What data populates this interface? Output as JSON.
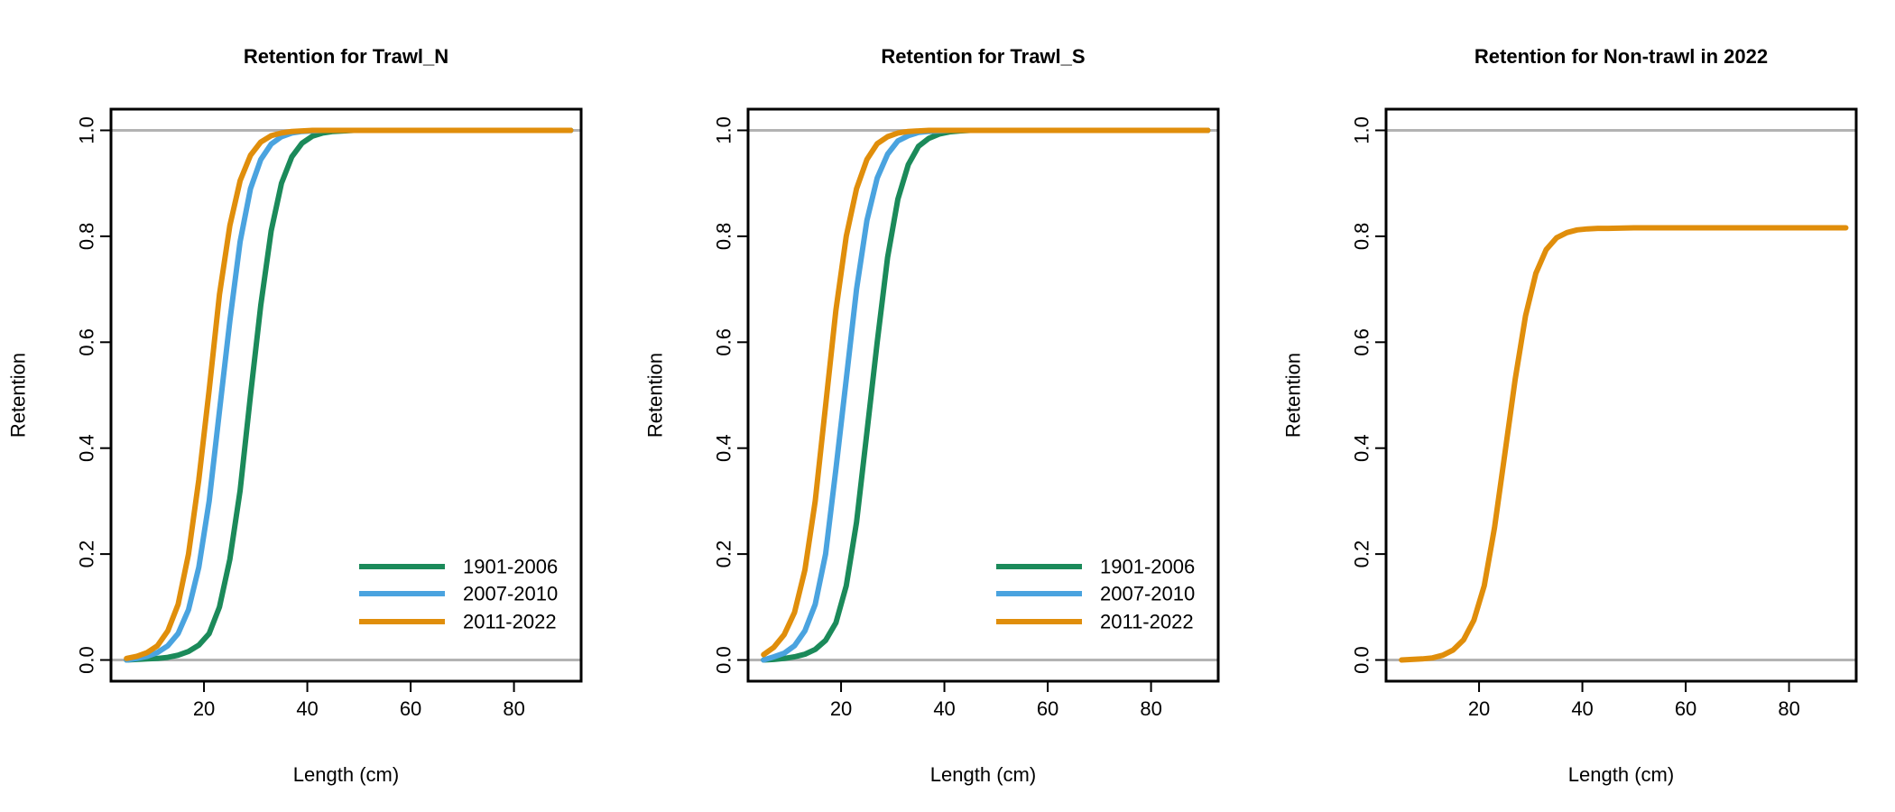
{
  "chart_data": [
    {
      "type": "line",
      "title": "Retention for Trawl_N",
      "xlabel": "Length (cm)",
      "ylabel": "Retention",
      "xlim": [
        2,
        93
      ],
      "ylim": [
        -0.04,
        1.04
      ],
      "xticks": [
        20,
        40,
        60,
        80
      ],
      "yticks": [
        0.0,
        0.2,
        0.4,
        0.6,
        0.8,
        1.0
      ],
      "ytick_labels": [
        "0.0",
        "0.2",
        "0.4",
        "0.6",
        "0.8",
        "1.0"
      ],
      "reference_lines": [
        0,
        1
      ],
      "reference_color": "#b3b3b3",
      "legend": "bottom-right",
      "series": [
        {
          "name": "1901-2006",
          "color": "#1b8a5a",
          "x": [
            5,
            7,
            9,
            11,
            13,
            15,
            17,
            19,
            21,
            23,
            25,
            27,
            29,
            31,
            33,
            35,
            37,
            39,
            41,
            43,
            45,
            47,
            49,
            51,
            55,
            60,
            70,
            80,
            91
          ],
          "y": [
            0.0,
            0.001,
            0.002,
            0.003,
            0.005,
            0.009,
            0.016,
            0.028,
            0.05,
            0.1,
            0.19,
            0.32,
            0.5,
            0.67,
            0.81,
            0.9,
            0.95,
            0.976,
            0.989,
            0.995,
            0.998,
            0.999,
            1.0,
            1.0,
            1.0,
            1.0,
            1.0,
            1.0,
            1.0
          ]
        },
        {
          "name": "2007-2010",
          "color": "#4aa3df",
          "x": [
            5,
            7,
            9,
            11,
            13,
            15,
            17,
            19,
            21,
            23,
            25,
            27,
            29,
            31,
            33,
            35,
            37,
            39,
            41,
            43,
            45,
            47,
            50,
            55,
            60,
            70,
            80,
            91
          ],
          "y": [
            0.0,
            0.003,
            0.007,
            0.014,
            0.027,
            0.05,
            0.095,
            0.175,
            0.3,
            0.47,
            0.64,
            0.79,
            0.89,
            0.945,
            0.974,
            0.988,
            0.995,
            0.998,
            0.999,
            1.0,
            1.0,
            1.0,
            1.0,
            1.0,
            1.0,
            1.0,
            1.0,
            1.0
          ]
        },
        {
          "name": "2011-2022",
          "color": "#e08e0b",
          "x": [
            5,
            7,
            9,
            11,
            13,
            15,
            17,
            19,
            21,
            23,
            25,
            27,
            29,
            31,
            33,
            35,
            37,
            39,
            41,
            43,
            45,
            50,
            55,
            60,
            70,
            80,
            91
          ],
          "y": [
            0.003,
            0.007,
            0.014,
            0.027,
            0.055,
            0.105,
            0.2,
            0.34,
            0.51,
            0.69,
            0.82,
            0.905,
            0.953,
            0.978,
            0.99,
            0.995,
            0.998,
            0.999,
            1.0,
            1.0,
            1.0,
            1.0,
            1.0,
            1.0,
            1.0,
            1.0,
            1.0
          ]
        }
      ]
    },
    {
      "type": "line",
      "title": "Retention for Trawl_S",
      "xlabel": "Length (cm)",
      "ylabel": "Retention",
      "xlim": [
        2,
        93
      ],
      "ylim": [
        -0.04,
        1.04
      ],
      "xticks": [
        20,
        40,
        60,
        80
      ],
      "yticks": [
        0.0,
        0.2,
        0.4,
        0.6,
        0.8,
        1.0
      ],
      "ytick_labels": [
        "0.0",
        "0.2",
        "0.4",
        "0.6",
        "0.8",
        "1.0"
      ],
      "reference_lines": [
        0,
        1
      ],
      "reference_color": "#b3b3b3",
      "legend": "bottom-right",
      "series": [
        {
          "name": "1901-2006",
          "color": "#1b8a5a",
          "x": [
            5,
            7,
            9,
            11,
            13,
            15,
            17,
            19,
            21,
            23,
            25,
            27,
            29,
            31,
            33,
            35,
            37,
            39,
            41,
            43,
            45,
            47,
            50,
            55,
            60,
            70,
            80,
            91
          ],
          "y": [
            0.0,
            0.001,
            0.003,
            0.006,
            0.011,
            0.02,
            0.037,
            0.07,
            0.14,
            0.26,
            0.43,
            0.6,
            0.76,
            0.87,
            0.935,
            0.97,
            0.985,
            0.993,
            0.997,
            0.999,
            1.0,
            1.0,
            1.0,
            1.0,
            1.0,
            1.0,
            1.0,
            1.0
          ]
        },
        {
          "name": "2007-2010",
          "color": "#4aa3df",
          "x": [
            5,
            7,
            9,
            11,
            13,
            15,
            17,
            19,
            21,
            23,
            25,
            27,
            29,
            31,
            33,
            35,
            37,
            39,
            41,
            43,
            45,
            50,
            55,
            60,
            70,
            80,
            91
          ],
          "y": [
            0.0,
            0.006,
            0.013,
            0.027,
            0.055,
            0.105,
            0.2,
            0.36,
            0.53,
            0.7,
            0.83,
            0.91,
            0.955,
            0.98,
            0.99,
            0.996,
            0.998,
            0.999,
            1.0,
            1.0,
            1.0,
            1.0,
            1.0,
            1.0,
            1.0,
            1.0,
            1.0
          ]
        },
        {
          "name": "2011-2022",
          "color": "#e08e0b",
          "x": [
            5,
            7,
            9,
            11,
            13,
            15,
            17,
            19,
            21,
            23,
            25,
            27,
            29,
            31,
            33,
            35,
            37,
            39,
            41,
            45,
            50,
            55,
            60,
            70,
            80,
            91
          ],
          "y": [
            0.01,
            0.024,
            0.048,
            0.09,
            0.17,
            0.3,
            0.48,
            0.66,
            0.8,
            0.89,
            0.945,
            0.975,
            0.988,
            0.995,
            0.998,
            0.999,
            1.0,
            1.0,
            1.0,
            1.0,
            1.0,
            1.0,
            1.0,
            1.0,
            1.0,
            1.0
          ]
        }
      ]
    },
    {
      "type": "line",
      "title": "Retention for Non-trawl in 2022",
      "xlabel": "Length (cm)",
      "ylabel": "Retention",
      "xlim": [
        2,
        93
      ],
      "ylim": [
        -0.04,
        1.04
      ],
      "xticks": [
        20,
        40,
        60,
        80
      ],
      "yticks": [
        0.0,
        0.2,
        0.4,
        0.6,
        0.8,
        1.0
      ],
      "ytick_labels": [
        "0.0",
        "0.2",
        "0.4",
        "0.6",
        "0.8",
        "1.0"
      ],
      "reference_lines": [
        0,
        1
      ],
      "reference_color": "#b3b3b3",
      "series": [
        {
          "color": "#e08e0b",
          "x": [
            5,
            7,
            9,
            11,
            13,
            15,
            17,
            19,
            21,
            23,
            25,
            27,
            29,
            31,
            33,
            35,
            37,
            39,
            41,
            43,
            45,
            50,
            55,
            60,
            70,
            80,
            91
          ],
          "y": [
            0.0,
            0.001,
            0.002,
            0.004,
            0.009,
            0.019,
            0.038,
            0.075,
            0.14,
            0.25,
            0.39,
            0.53,
            0.65,
            0.73,
            0.775,
            0.797,
            0.807,
            0.812,
            0.814,
            0.815,
            0.815,
            0.816,
            0.816,
            0.816,
            0.816,
            0.816,
            0.816
          ]
        }
      ]
    }
  ]
}
